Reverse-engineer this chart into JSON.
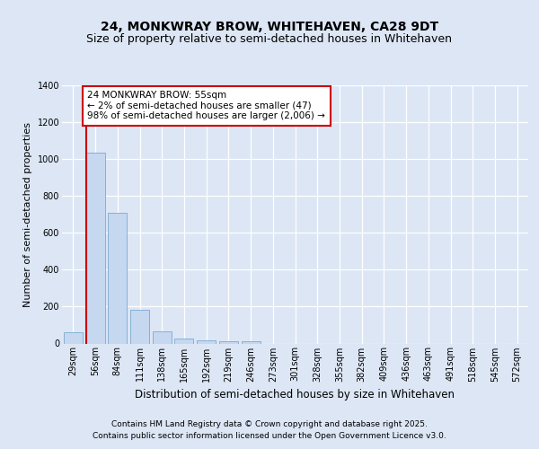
{
  "title": "24, MONKWRAY BROW, WHITEHAVEN, CA28 9DT",
  "subtitle": "Size of property relative to semi-detached houses in Whitehaven",
  "xlabel": "Distribution of semi-detached houses by size in Whitehaven",
  "ylabel": "Number of semi-detached properties",
  "categories": [
    "29sqm",
    "56sqm",
    "84sqm",
    "111sqm",
    "138sqm",
    "165sqm",
    "192sqm",
    "219sqm",
    "246sqm",
    "273sqm",
    "301sqm",
    "328sqm",
    "355sqm",
    "382sqm",
    "409sqm",
    "436sqm",
    "463sqm",
    "491sqm",
    "518sqm",
    "545sqm",
    "572sqm"
  ],
  "values": [
    60,
    1035,
    710,
    185,
    65,
    25,
    15,
    10,
    10,
    0,
    0,
    0,
    0,
    0,
    0,
    0,
    0,
    0,
    0,
    0,
    0
  ],
  "bar_color": "#c5d8f0",
  "bar_edge_color": "#7aaad0",
  "vline_color": "#cc0000",
  "annotation_text": "24 MONKWRAY BROW: 55sqm\n← 2% of semi-detached houses are smaller (47)\n98% of semi-detached houses are larger (2,006) →",
  "annotation_box_color": "#ffffff",
  "annotation_box_edge": "#cc0000",
  "background_color": "#dce6f5",
  "grid_color": "#ffffff",
  "ylim": [
    0,
    1400
  ],
  "yticks": [
    0,
    200,
    400,
    600,
    800,
    1000,
    1200,
    1400
  ],
  "footer_line1": "Contains HM Land Registry data © Crown copyright and database right 2025.",
  "footer_line2": "Contains public sector information licensed under the Open Government Licence v3.0.",
  "title_fontsize": 10,
  "subtitle_fontsize": 9,
  "xlabel_fontsize": 8.5,
  "ylabel_fontsize": 8,
  "tick_fontsize": 7,
  "annotation_fontsize": 7.5,
  "footer_fontsize": 6.5
}
